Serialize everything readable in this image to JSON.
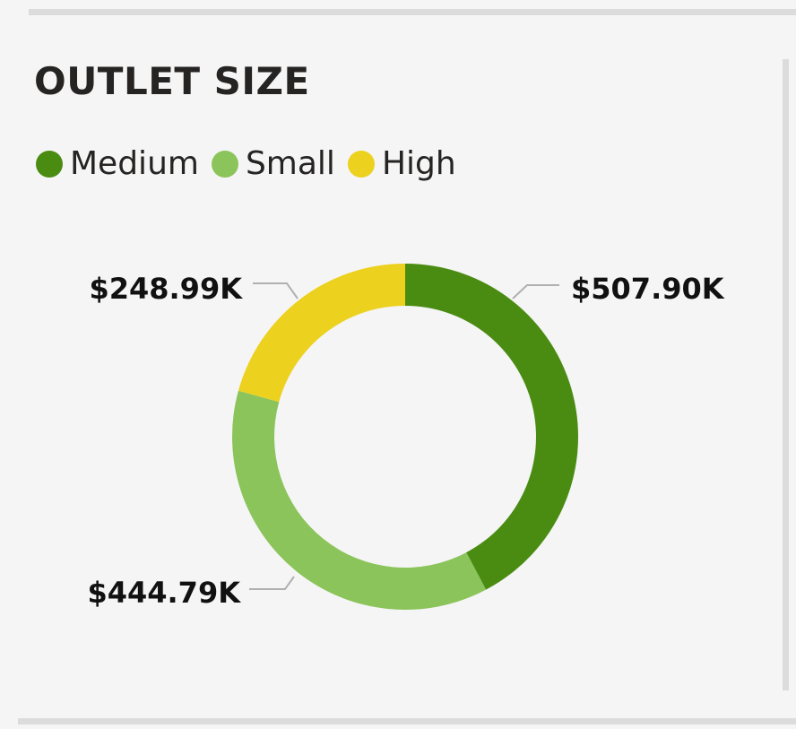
{
  "header": {
    "title": "OUTLET SIZE"
  },
  "chart_data": {
    "type": "pie",
    "donut": true,
    "title": "OUTLET SIZE",
    "legend_position": "top-left",
    "series": [
      {
        "name": "Medium",
        "value": 507.9,
        "label": "$507.90K",
        "color": "#4a8c12"
      },
      {
        "name": "Small",
        "value": 444.79,
        "label": "$444.79K",
        "color": "#8bc45a"
      },
      {
        "name": "High",
        "value": 248.99,
        "label": "$248.99K",
        "color": "#ecd11f"
      }
    ]
  }
}
